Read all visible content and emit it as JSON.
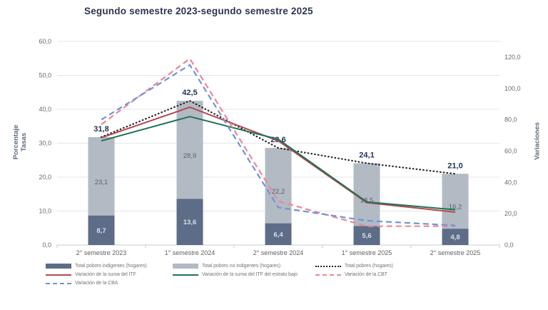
{
  "chart_data": {
    "type": "combo-stacked-bar-line",
    "title": "Segundo semestre 2023-segundo semestre 2025",
    "categories": [
      "2° semestre 2023",
      "1° semestre 2024",
      "2° semestre 2024",
      "1° semestre 2025",
      "2° semestre 2025"
    ],
    "left_axis": {
      "title_line1": "Porcentaje",
      "title_line2": "Tasas",
      "max": 60,
      "ticks": [
        {
          "v": 0,
          "label": "0,0"
        },
        {
          "v": 10,
          "label": "10,0"
        },
        {
          "v": 20,
          "label": "20,0"
        },
        {
          "v": 30,
          "label": "30,0"
        },
        {
          "v": 40,
          "label": "40,0"
        },
        {
          "v": 50,
          "label": "50,0"
        },
        {
          "v": 60,
          "label": "60,0"
        }
      ]
    },
    "right_axis": {
      "title": "Variaciones",
      "max": 130,
      "ticks": [
        {
          "v": 0,
          "label": "0,0"
        },
        {
          "v": 20,
          "label": "20,0"
        },
        {
          "v": 40,
          "label": "40,0"
        },
        {
          "v": 60,
          "label": "60,0"
        },
        {
          "v": 80,
          "label": "80,0"
        },
        {
          "v": 100,
          "label": "100,0"
        },
        {
          "v": 120,
          "label": "120,0"
        }
      ]
    },
    "bar_series": [
      {
        "name": "Total pobres indigentes (hogares)",
        "axis": "left",
        "color": "#5d6c87",
        "values": [
          8.7,
          13.6,
          6.4,
          5.6,
          4.8
        ],
        "labels": [
          "8,7",
          "13,6",
          "6,4",
          "5,6",
          "4,8"
        ],
        "label_color": "#d9dfe8"
      },
      {
        "name": "Total pobres no indigentes (hogares)",
        "axis": "left",
        "color": "#b2bac4",
        "values": [
          23.1,
          28.9,
          22.2,
          18.5,
          16.2
        ],
        "labels": [
          "23,1",
          "28,9",
          "22,2",
          "18,5",
          "16,2"
        ],
        "label_color": "#59626f"
      }
    ],
    "total_labels": [
      "31,8",
      "42,5",
      "28,6",
      "24,1",
      "21,0"
    ],
    "total_values": [
      31.8,
      42.5,
      28.6,
      24.1,
      21.0
    ],
    "line_series": [
      {
        "name": "Total pobres (hogares)",
        "axis": "left",
        "style": "dotted",
        "color": "#262626",
        "values": [
          31.8,
          42.5,
          28.6,
          24.1,
          21.0
        ]
      },
      {
        "name": "Variación de la suma del ITF",
        "axis": "right",
        "style": "solid",
        "color": "#b5494f",
        "values": [
          68.5,
          88.0,
          66.5,
          27.0,
          21.0
        ]
      },
      {
        "name": "Variación de la suma del ITF del estrato bajo",
        "axis": "right",
        "style": "solid",
        "color": "#1e7354",
        "values": [
          66.5,
          82.0,
          67.5,
          27.5,
          22.5
        ]
      },
      {
        "name": "Variación de la CBT",
        "axis": "right",
        "style": "dashed",
        "color": "#ed8793",
        "values": [
          77.0,
          119.0,
          28.0,
          12.0,
          12.0
        ]
      },
      {
        "name": "Variación de la CBA",
        "axis": "right",
        "style": "dashed",
        "color": "#6f94d9",
        "values": [
          80.0,
          115.0,
          24.0,
          15.5,
          12.5
        ]
      }
    ],
    "colors": {
      "title_text": "#2a3550",
      "total_label_text": "#24335a",
      "gridline": "#e2e5e9",
      "axis_line": "#c6cbd1",
      "tick_text": "#6a6a6a"
    }
  },
  "legend": [
    {
      "label": "Total pobres indigentes (hogares)",
      "marker": "rect",
      "color": "#5d6c87"
    },
    {
      "label": "Total pobres no indigentes (hogares)",
      "marker": "rect",
      "color": "#b2bac4"
    },
    {
      "label": "Total pobres (hogares)",
      "marker": "dotted",
      "color": "#262626"
    },
    {
      "label": "Variación de la suma del ITF",
      "marker": "solid",
      "color": "#b5494f"
    },
    {
      "label": "Variación de la suma del ITF del estrato bajo",
      "marker": "solid",
      "color": "#1e7354"
    },
    {
      "label": "Variación de la CBT",
      "marker": "dashed",
      "color": "#ed8793"
    },
    {
      "label": "Variación de la CBA",
      "marker": "dashed",
      "color": "#6f94d9"
    }
  ]
}
